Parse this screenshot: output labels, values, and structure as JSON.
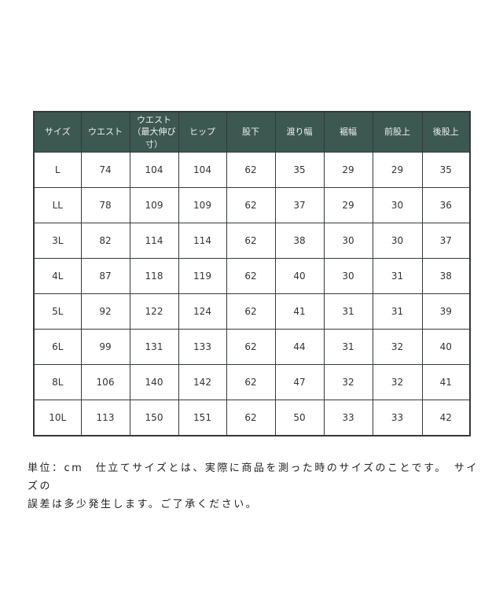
{
  "table": {
    "headers": [
      "サイズ",
      "ウエスト",
      "ウエスト（最大伸び寸）",
      "ヒップ",
      "股下",
      "渡り幅",
      "裾幅",
      "前股上",
      "後股上"
    ],
    "rows": [
      [
        "L",
        "74",
        "104",
        "104",
        "62",
        "35",
        "29",
        "29",
        "35"
      ],
      [
        "LL",
        "78",
        "109",
        "109",
        "62",
        "37",
        "29",
        "30",
        "36"
      ],
      [
        "3L",
        "82",
        "114",
        "114",
        "62",
        "38",
        "30",
        "30",
        "37"
      ],
      [
        "4L",
        "87",
        "118",
        "119",
        "62",
        "40",
        "30",
        "31",
        "38"
      ],
      [
        "5L",
        "92",
        "122",
        "124",
        "62",
        "41",
        "31",
        "31",
        "39"
      ],
      [
        "6L",
        "99",
        "131",
        "133",
        "62",
        "44",
        "31",
        "32",
        "40"
      ],
      [
        "8L",
        "106",
        "140",
        "142",
        "62",
        "47",
        "32",
        "32",
        "41"
      ],
      [
        "10L",
        "113",
        "150",
        "151",
        "62",
        "50",
        "33",
        "33",
        "42"
      ]
    ]
  },
  "footnote": {
    "lines": [
      "単位：cm　仕立てサイズとは、実際に商品を測った時のサイズのことです。　サイズの",
      "誤差は多少発生します。ご了承ください。"
    ]
  },
  "colors": {
    "page_bg": "#ffffff",
    "header_bg": "#3d5751",
    "header_text": "#eef1ef",
    "border_color": "#333a3c",
    "cell_text": "#333333",
    "footnote_color": "#222222"
  }
}
